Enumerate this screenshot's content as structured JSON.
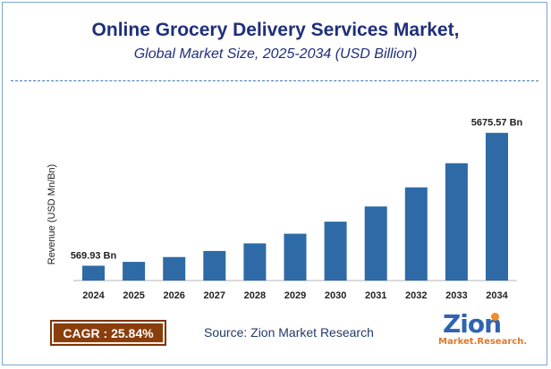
{
  "header": {
    "title": "Online Grocery Delivery Services Market,",
    "subtitle": "Global Market Size, 2025-2034 (USD Billion)"
  },
  "chart_data": {
    "type": "bar",
    "categories": [
      "2024",
      "2025",
      "2026",
      "2027",
      "2028",
      "2029",
      "2030",
      "2031",
      "2032",
      "2033",
      "2034"
    ],
    "values": [
      569.93,
      717.2,
      902.5,
      1135.7,
      1429.1,
      1798.4,
      2263.1,
      2847.9,
      3583.7,
      4509.8,
      5675.57
    ],
    "data_labels": [
      {
        "index": 0,
        "text": "569.93 Bn"
      },
      {
        "index": 10,
        "text": "5675.57 Bn"
      }
    ],
    "ylabel": "Revenue (USD Mn/Bn)",
    "xlabel": "",
    "ylim": [
      0,
      6800
    ],
    "bar_color": "#2e6aa6",
    "grid": false,
    "legend": "none"
  },
  "footer": {
    "cagr_label": "CAGR : 25.84%",
    "source": "Source: Zion Market Research",
    "logo_word": "Zion",
    "logo_sub": "Market.Research."
  },
  "colors": {
    "title": "#1f2f7a",
    "bar": "#2e6aa6",
    "cagr_bg": "#8a3e0c",
    "logo_blue": "#2f64b0",
    "logo_orange": "#e0782a"
  }
}
